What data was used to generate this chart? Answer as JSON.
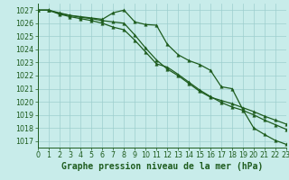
{
  "bg_color": "#c8ecea",
  "grid_color": "#9dcece",
  "line_color": "#1e5c1e",
  "xlabel": "Graphe pression niveau de la mer (hPa)",
  "xlim": [
    0,
    23
  ],
  "ylim": [
    1016.5,
    1027.5
  ],
  "yticks": [
    1017,
    1018,
    1019,
    1020,
    1021,
    1022,
    1023,
    1024,
    1025,
    1026,
    1027
  ],
  "xticks": [
    0,
    1,
    2,
    3,
    4,
    5,
    6,
    7,
    8,
    9,
    10,
    11,
    12,
    13,
    14,
    15,
    16,
    17,
    18,
    19,
    20,
    21,
    22,
    23
  ],
  "series1": [
    1027.0,
    1027.0,
    1026.8,
    1026.6,
    1026.5,
    1026.4,
    1026.3,
    1026.8,
    1027.0,
    1026.1,
    1025.9,
    1025.85,
    1024.4,
    1023.6,
    1023.15,
    1022.85,
    1022.4,
    1021.15,
    1021.0,
    1019.4,
    1018.0,
    1017.5,
    1017.05,
    1016.75
  ],
  "series2": [
    1027.0,
    1027.0,
    1026.75,
    1026.6,
    1026.45,
    1026.35,
    1026.2,
    1026.1,
    1026.0,
    1025.1,
    1024.1,
    1023.2,
    1022.5,
    1022.0,
    1021.4,
    1020.8,
    1020.35,
    1020.1,
    1019.85,
    1019.55,
    1019.25,
    1018.9,
    1018.6,
    1018.3
  ],
  "series3": [
    1027.0,
    1027.0,
    1026.7,
    1026.5,
    1026.35,
    1026.2,
    1026.0,
    1025.7,
    1025.5,
    1024.7,
    1023.8,
    1022.9,
    1022.65,
    1022.1,
    1021.5,
    1020.9,
    1020.4,
    1019.95,
    1019.6,
    1019.35,
    1019.0,
    1018.6,
    1018.25,
    1017.9
  ],
  "markersize": 2.5,
  "linewidth": 0.9,
  "xlabel_fontsize": 7.0,
  "tick_fontsize": 5.8
}
